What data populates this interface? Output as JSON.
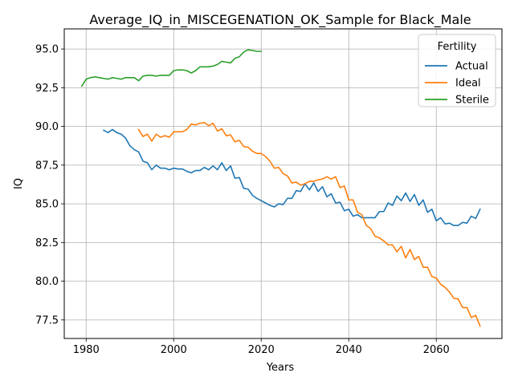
{
  "chart_data": {
    "type": "line",
    "title": "Average_IQ_in_MISCEGENATION_OK_Sample for Black_Male",
    "xlabel": "Years",
    "ylabel": "IQ",
    "xlim": [
      1975,
      2075
    ],
    "ylim": [
      76.3,
      96.3
    ],
    "xticks": [
      1980,
      2000,
      2020,
      2040,
      2060
    ],
    "yticks": [
      77.5,
      80.0,
      82.5,
      85.0,
      87.5,
      90.0,
      92.5,
      95.0
    ],
    "ytick_labels": [
      "77.5",
      "80.0",
      "82.5",
      "85.0",
      "87.5",
      "90.0",
      "92.5",
      "95.0"
    ],
    "grid": true,
    "legend": {
      "title": "Fertility",
      "placement": "top-right"
    },
    "series": [
      {
        "name": "Actual",
        "color": "#1f77b4",
        "x": [
          1984,
          1985,
          1986,
          1987,
          1988,
          1989,
          1990,
          1991,
          1992,
          1993,
          1994,
          1995,
          1996,
          1997,
          1998,
          1999,
          2000,
          2001,
          2002,
          2003,
          2004,
          2005,
          2006,
          2007,
          2008,
          2009,
          2010,
          2011,
          2012,
          2013,
          2014,
          2015,
          2016,
          2017,
          2018,
          2019,
          2020,
          2021,
          2022,
          2023,
          2024,
          2025,
          2026,
          2027,
          2028,
          2029,
          2030,
          2031,
          2032,
          2033,
          2034,
          2035,
          2036,
          2037,
          2038,
          2039,
          2040,
          2041,
          2042,
          2043,
          2044,
          2045,
          2046,
          2047,
          2048,
          2049,
          2050,
          2051,
          2052,
          2053,
          2054,
          2055,
          2056,
          2057,
          2058,
          2059,
          2060,
          2061,
          2062,
          2063,
          2064,
          2065,
          2066,
          2067,
          2068,
          2069,
          2070
        ],
        "values": [
          89.75,
          89.6,
          89.8,
          89.6,
          89.5,
          89.25,
          88.75,
          88.5,
          88.35,
          87.75,
          87.65,
          87.2,
          87.5,
          87.3,
          87.3,
          87.2,
          87.3,
          87.25,
          87.25,
          87.1,
          87.0,
          87.15,
          87.15,
          87.35,
          87.2,
          87.45,
          87.2,
          87.65,
          87.15,
          87.45,
          86.65,
          86.7,
          86.0,
          85.95,
          85.55,
          85.35,
          85.2,
          85.05,
          84.9,
          84.8,
          85.0,
          84.95,
          85.35,
          85.35,
          85.85,
          85.8,
          86.3,
          85.9,
          86.35,
          85.8,
          86.1,
          85.45,
          85.65,
          85.05,
          85.1,
          84.55,
          84.65,
          84.2,
          84.3,
          84.1,
          84.1,
          84.1,
          84.1,
          84.5,
          84.5,
          85.05,
          84.9,
          85.5,
          85.2,
          85.7,
          85.15,
          85.6,
          84.9,
          85.25,
          84.45,
          84.65,
          83.9,
          84.1,
          83.7,
          83.75,
          83.6,
          83.6,
          83.8,
          83.75,
          84.2,
          84.05,
          84.65
        ]
      },
      {
        "name": "Ideal",
        "color": "#ff7f0e",
        "x": [
          1992,
          1993,
          1994,
          1995,
          1996,
          1997,
          1998,
          1999,
          2000,
          2001,
          2002,
          2003,
          2004,
          2005,
          2006,
          2007,
          2008,
          2009,
          2010,
          2011,
          2012,
          2013,
          2014,
          2015,
          2016,
          2017,
          2018,
          2019,
          2020,
          2021,
          2022,
          2023,
          2024,
          2025,
          2026,
          2027,
          2028,
          2029,
          2030,
          2031,
          2032,
          2033,
          2034,
          2035,
          2036,
          2037,
          2038,
          2039,
          2040,
          2041,
          2042,
          2043,
          2044,
          2045,
          2046,
          2047,
          2048,
          2049,
          2050,
          2051,
          2052,
          2053,
          2054,
          2055,
          2056,
          2057,
          2058,
          2059,
          2060,
          2061,
          2062,
          2063,
          2064,
          2065,
          2066,
          2067,
          2068,
          2069,
          2070
        ],
        "values": [
          89.8,
          89.35,
          89.5,
          89.05,
          89.5,
          89.3,
          89.4,
          89.3,
          89.65,
          89.65,
          89.65,
          89.8,
          90.15,
          90.1,
          90.2,
          90.25,
          90.05,
          90.2,
          89.7,
          89.85,
          89.4,
          89.45,
          89.0,
          89.1,
          88.7,
          88.65,
          88.4,
          88.25,
          88.25,
          88.05,
          87.75,
          87.3,
          87.35,
          86.95,
          86.8,
          86.35,
          86.4,
          86.2,
          86.3,
          86.45,
          86.45,
          86.55,
          86.6,
          86.75,
          86.6,
          86.75,
          86.05,
          86.15,
          85.25,
          85.25,
          84.45,
          84.3,
          83.6,
          83.4,
          82.9,
          82.8,
          82.6,
          82.35,
          82.35,
          81.9,
          82.25,
          81.5,
          82.05,
          81.4,
          81.6,
          80.9,
          80.9,
          80.3,
          80.2,
          79.8,
          79.6,
          79.3,
          78.9,
          78.85,
          78.3,
          78.3,
          77.65,
          77.8,
          77.1
        ]
      },
      {
        "name": "Sterile",
        "color": "#2ca02c",
        "x": [
          1979,
          1980,
          1981,
          1982,
          1983,
          1984,
          1985,
          1986,
          1987,
          1988,
          1989,
          1990,
          1991,
          1992,
          1993,
          1994,
          1995,
          1996,
          1997,
          1998,
          1999,
          2000,
          2001,
          2002,
          2003,
          2004,
          2005,
          2006,
          2007,
          2008,
          2009,
          2010,
          2011,
          2012,
          2013,
          2014,
          2015,
          2016,
          2017,
          2018,
          2019,
          2020
        ],
        "values": [
          92.6,
          93.05,
          93.15,
          93.2,
          93.15,
          93.1,
          93.05,
          93.15,
          93.1,
          93.05,
          93.15,
          93.15,
          93.15,
          92.95,
          93.25,
          93.3,
          93.3,
          93.25,
          93.3,
          93.3,
          93.3,
          93.6,
          93.65,
          93.65,
          93.6,
          93.45,
          93.6,
          93.85,
          93.85,
          93.85,
          93.9,
          94.0,
          94.2,
          94.15,
          94.1,
          94.4,
          94.5,
          94.8,
          94.95,
          94.9,
          94.85,
          94.85
        ]
      }
    ]
  }
}
